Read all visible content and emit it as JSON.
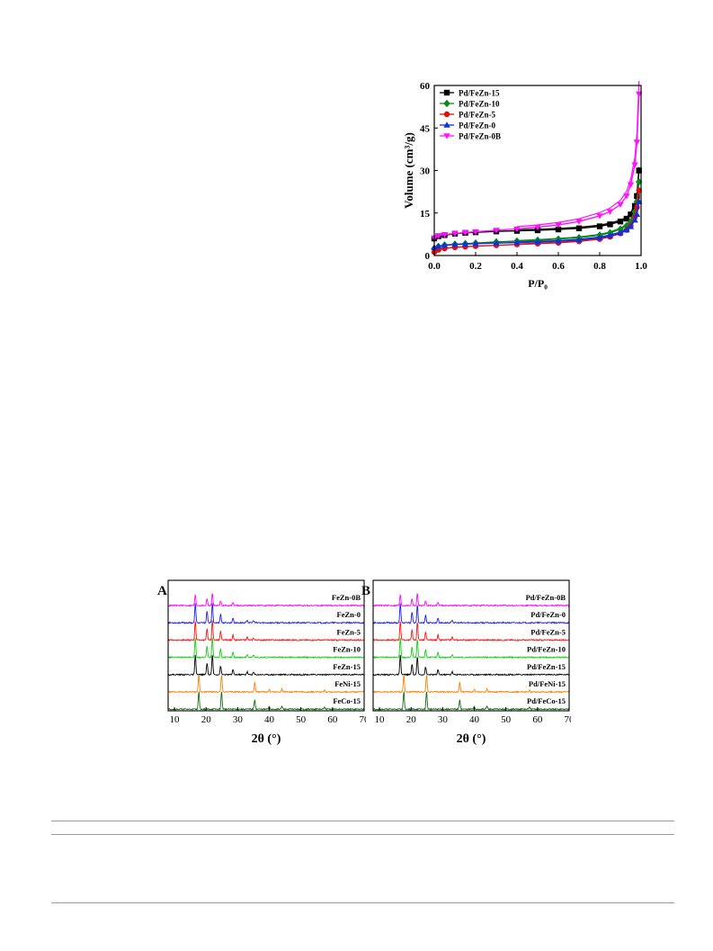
{
  "chart_data": [
    {
      "type": "line",
      "xlabel": "P/P₀",
      "ylabel": "Volume (cm³/g)",
      "xlim": [
        0.0,
        1.0
      ],
      "ylim": [
        0,
        60
      ],
      "xticks": [
        "0.0",
        "0.2",
        "0.4",
        "0.6",
        "0.8",
        "1.0"
      ],
      "yticks": [
        "0",
        "15",
        "30",
        "45",
        "60"
      ],
      "legend_position": "top-left",
      "series": [
        {
          "name": "Pd/FeZn-15",
          "color": "#000000",
          "marker": "square",
          "x": [
            0.0,
            0.02,
            0.05,
            0.1,
            0.15,
            0.2,
            0.3,
            0.4,
            0.5,
            0.6,
            0.7,
            0.8,
            0.85,
            0.9,
            0.93,
            0.95,
            0.97,
            0.98,
            0.99
          ],
          "y": [
            6.0,
            6.8,
            7.2,
            7.7,
            8.0,
            8.2,
            8.5,
            8.7,
            8.9,
            9.2,
            9.6,
            10.3,
            11.0,
            12.0,
            13.0,
            14.5,
            17.5,
            21.0,
            30.0
          ]
        },
        {
          "name": "Pd/FeZn-10",
          "color": "#0a8a1a",
          "marker": "diamond",
          "x": [
            0.0,
            0.02,
            0.05,
            0.1,
            0.15,
            0.2,
            0.3,
            0.4,
            0.5,
            0.6,
            0.7,
            0.8,
            0.85,
            0.9,
            0.93,
            0.95,
            0.97,
            0.98,
            0.99
          ],
          "y": [
            2.5,
            3.2,
            3.7,
            4.0,
            4.2,
            4.4,
            4.8,
            5.1,
            5.4,
            5.8,
            6.3,
            7.2,
            8.0,
            9.3,
            10.5,
            12.0,
            15.5,
            19.0,
            26.0
          ]
        },
        {
          "name": "Pd/FeZn-5",
          "color": "#e01010",
          "marker": "circle",
          "x": [
            0.0,
            0.02,
            0.05,
            0.1,
            0.15,
            0.2,
            0.3,
            0.4,
            0.5,
            0.6,
            0.7,
            0.8,
            0.85,
            0.9,
            0.93,
            0.95,
            0.97,
            0.98,
            0.99
          ],
          "y": [
            1.2,
            2.0,
            2.5,
            2.9,
            3.1,
            3.3,
            3.6,
            3.9,
            4.2,
            4.5,
            5.0,
            5.8,
            6.6,
            7.8,
            9.0,
            10.5,
            13.5,
            17.0,
            23.0
          ]
        },
        {
          "name": "Pd/FeZn-0",
          "color": "#1030e0",
          "marker": "triangle-up",
          "x": [
            0.0,
            0.02,
            0.05,
            0.1,
            0.15,
            0.2,
            0.3,
            0.4,
            0.5,
            0.6,
            0.7,
            0.8,
            0.85,
            0.9,
            0.93,
            0.95,
            0.97,
            0.98,
            0.99
          ],
          "y": [
            2.8,
            3.3,
            3.6,
            3.9,
            4.0,
            4.2,
            4.4,
            4.6,
            4.8,
            5.1,
            5.5,
            6.3,
            7.0,
            8.0,
            9.0,
            10.2,
            12.5,
            14.5,
            19.0
          ]
        },
        {
          "name": "Pd/FeZn-0B",
          "color": "#ff10ff",
          "marker": "triangle-down",
          "x": [
            0.0,
            0.02,
            0.05,
            0.1,
            0.15,
            0.2,
            0.3,
            0.4,
            0.5,
            0.6,
            0.7,
            0.8,
            0.85,
            0.9,
            0.93,
            0.95,
            0.97,
            0.98,
            0.99
          ],
          "y": [
            6.2,
            7.0,
            7.4,
            7.8,
            8.1,
            8.4,
            8.9,
            9.4,
            10.0,
            10.8,
            12.0,
            14.0,
            15.5,
            18.0,
            21.0,
            25.0,
            32.0,
            40.0,
            57.0
          ]
        }
      ]
    },
    {
      "type": "line",
      "panel_label": "A",
      "xlabel": "2θ (°)",
      "xlim": [
        8,
        70
      ],
      "xticks": [
        "10",
        "20",
        "30",
        "40",
        "50",
        "60",
        "70"
      ],
      "y_axis": "offset stacked, no tick labels",
      "series": [
        {
          "name": "FeZn-0B",
          "color": "#ff00ff",
          "peaks": [
            {
              "x": 16.6,
              "h": 0.55
            },
            {
              "x": 20.3,
              "h": 0.35
            },
            {
              "x": 22.0,
              "h": 0.6
            },
            {
              "x": 24.6,
              "h": 0.25
            },
            {
              "x": 28.5,
              "h": 0.15
            }
          ]
        },
        {
          "name": "FeZn-0",
          "color": "#1a1aff",
          "peaks": [
            {
              "x": 16.6,
              "h": 1.0
            },
            {
              "x": 20.3,
              "h": 0.6
            },
            {
              "x": 22.0,
              "h": 1.0
            },
            {
              "x": 24.6,
              "h": 0.45
            },
            {
              "x": 28.5,
              "h": 0.25
            },
            {
              "x": 33.0,
              "h": 0.15
            },
            {
              "x": 35.0,
              "h": 0.12
            }
          ]
        },
        {
          "name": "FeZn-5",
          "color": "#ff1010",
          "peaks": [
            {
              "x": 16.6,
              "h": 1.0
            },
            {
              "x": 20.3,
              "h": 0.6
            },
            {
              "x": 22.0,
              "h": 1.0
            },
            {
              "x": 24.6,
              "h": 0.45
            },
            {
              "x": 28.5,
              "h": 0.25
            },
            {
              "x": 33.0,
              "h": 0.15
            },
            {
              "x": 35.0,
              "h": 0.12
            }
          ]
        },
        {
          "name": "FeZn-10",
          "color": "#10d010",
          "peaks": [
            {
              "x": 16.6,
              "h": 1.0
            },
            {
              "x": 20.3,
              "h": 0.6
            },
            {
              "x": 22.0,
              "h": 1.0
            },
            {
              "x": 24.6,
              "h": 0.45
            },
            {
              "x": 28.5,
              "h": 0.25
            },
            {
              "x": 33.0,
              "h": 0.15
            },
            {
              "x": 35.0,
              "h": 0.12
            }
          ]
        },
        {
          "name": "FeZn-15",
          "color": "#000000",
          "peaks": [
            {
              "x": 16.6,
              "h": 1.0
            },
            {
              "x": 20.3,
              "h": 0.6
            },
            {
              "x": 22.0,
              "h": 1.0
            },
            {
              "x": 24.6,
              "h": 0.45
            },
            {
              "x": 28.5,
              "h": 0.25
            },
            {
              "x": 33.0,
              "h": 0.15
            },
            {
              "x": 35.0,
              "h": 0.12
            }
          ]
        },
        {
          "name": "FeNi-15",
          "color": "#ff8000",
          "peaks": [
            {
              "x": 17.7,
              "h": 0.9
            },
            {
              "x": 24.9,
              "h": 0.9
            },
            {
              "x": 35.4,
              "h": 0.5
            },
            {
              "x": 40.0,
              "h": 0.12
            },
            {
              "x": 44.0,
              "h": 0.15
            },
            {
              "x": 57.5,
              "h": 0.1
            }
          ]
        },
        {
          "name": "FeCo-15",
          "color": "#107010",
          "peaks": [
            {
              "x": 17.7,
              "h": 0.9
            },
            {
              "x": 24.9,
              "h": 0.9
            },
            {
              "x": 35.4,
              "h": 0.5
            },
            {
              "x": 40.0,
              "h": 0.12
            },
            {
              "x": 44.0,
              "h": 0.15
            },
            {
              "x": 57.5,
              "h": 0.1
            }
          ]
        }
      ]
    },
    {
      "type": "line",
      "panel_label": "B",
      "xlabel": "2θ (°)",
      "xlim": [
        8,
        70
      ],
      "xticks": [
        "10",
        "20",
        "30",
        "40",
        "50",
        "60",
        "70"
      ],
      "y_axis": "offset stacked, no tick labels",
      "series": [
        {
          "name": "Pd/FeZn-0B",
          "color": "#ff00ff",
          "peaks": [
            {
              "x": 16.6,
              "h": 0.55
            },
            {
              "x": 20.3,
              "h": 0.35
            },
            {
              "x": 22.0,
              "h": 0.6
            },
            {
              "x": 24.6,
              "h": 0.25
            },
            {
              "x": 28.5,
              "h": 0.15
            }
          ]
        },
        {
          "name": "Pd/FeZn-0",
          "color": "#1a1aff",
          "peaks": [
            {
              "x": 16.6,
              "h": 1.0
            },
            {
              "x": 20.3,
              "h": 0.55
            },
            {
              "x": 22.0,
              "h": 0.9
            },
            {
              "x": 24.6,
              "h": 0.4
            },
            {
              "x": 28.5,
              "h": 0.25
            },
            {
              "x": 33.0,
              "h": 0.15
            }
          ]
        },
        {
          "name": "Pd/FeZn-5",
          "color": "#ff1010",
          "peaks": [
            {
              "x": 16.6,
              "h": 1.0
            },
            {
              "x": 20.3,
              "h": 0.55
            },
            {
              "x": 22.0,
              "h": 0.9
            },
            {
              "x": 24.6,
              "h": 0.4
            },
            {
              "x": 28.5,
              "h": 0.25
            },
            {
              "x": 33.0,
              "h": 0.15
            }
          ]
        },
        {
          "name": "Pd/FeZn-10",
          "color": "#10d010",
          "peaks": [
            {
              "x": 16.6,
              "h": 1.0
            },
            {
              "x": 20.3,
              "h": 0.55
            },
            {
              "x": 22.0,
              "h": 0.9
            },
            {
              "x": 24.6,
              "h": 0.4
            },
            {
              "x": 28.5,
              "h": 0.25
            },
            {
              "x": 33.0,
              "h": 0.15
            }
          ]
        },
        {
          "name": "Pd/FeZn-15",
          "color": "#000000",
          "peaks": [
            {
              "x": 16.6,
              "h": 1.0
            },
            {
              "x": 20.3,
              "h": 0.55
            },
            {
              "x": 22.0,
              "h": 0.9
            },
            {
              "x": 24.6,
              "h": 0.4
            },
            {
              "x": 28.5,
              "h": 0.25
            },
            {
              "x": 33.0,
              "h": 0.15
            }
          ]
        },
        {
          "name": "Pd/FeNi-15",
          "color": "#ff8000",
          "peaks": [
            {
              "x": 17.7,
              "h": 0.9
            },
            {
              "x": 24.9,
              "h": 0.9
            },
            {
              "x": 35.4,
              "h": 0.5
            },
            {
              "x": 40.0,
              "h": 0.12
            },
            {
              "x": 44.0,
              "h": 0.15
            },
            {
              "x": 57.5,
              "h": 0.1
            }
          ]
        },
        {
          "name": "Pd/FeCo-15",
          "color": "#107010",
          "peaks": [
            {
              "x": 17.7,
              "h": 0.9
            },
            {
              "x": 24.9,
              "h": 0.9
            },
            {
              "x": 35.4,
              "h": 0.5
            },
            {
              "x": 40.0,
              "h": 0.12
            },
            {
              "x": 44.0,
              "h": 0.15
            },
            {
              "x": 57.5,
              "h": 0.1
            }
          ]
        }
      ]
    }
  ]
}
